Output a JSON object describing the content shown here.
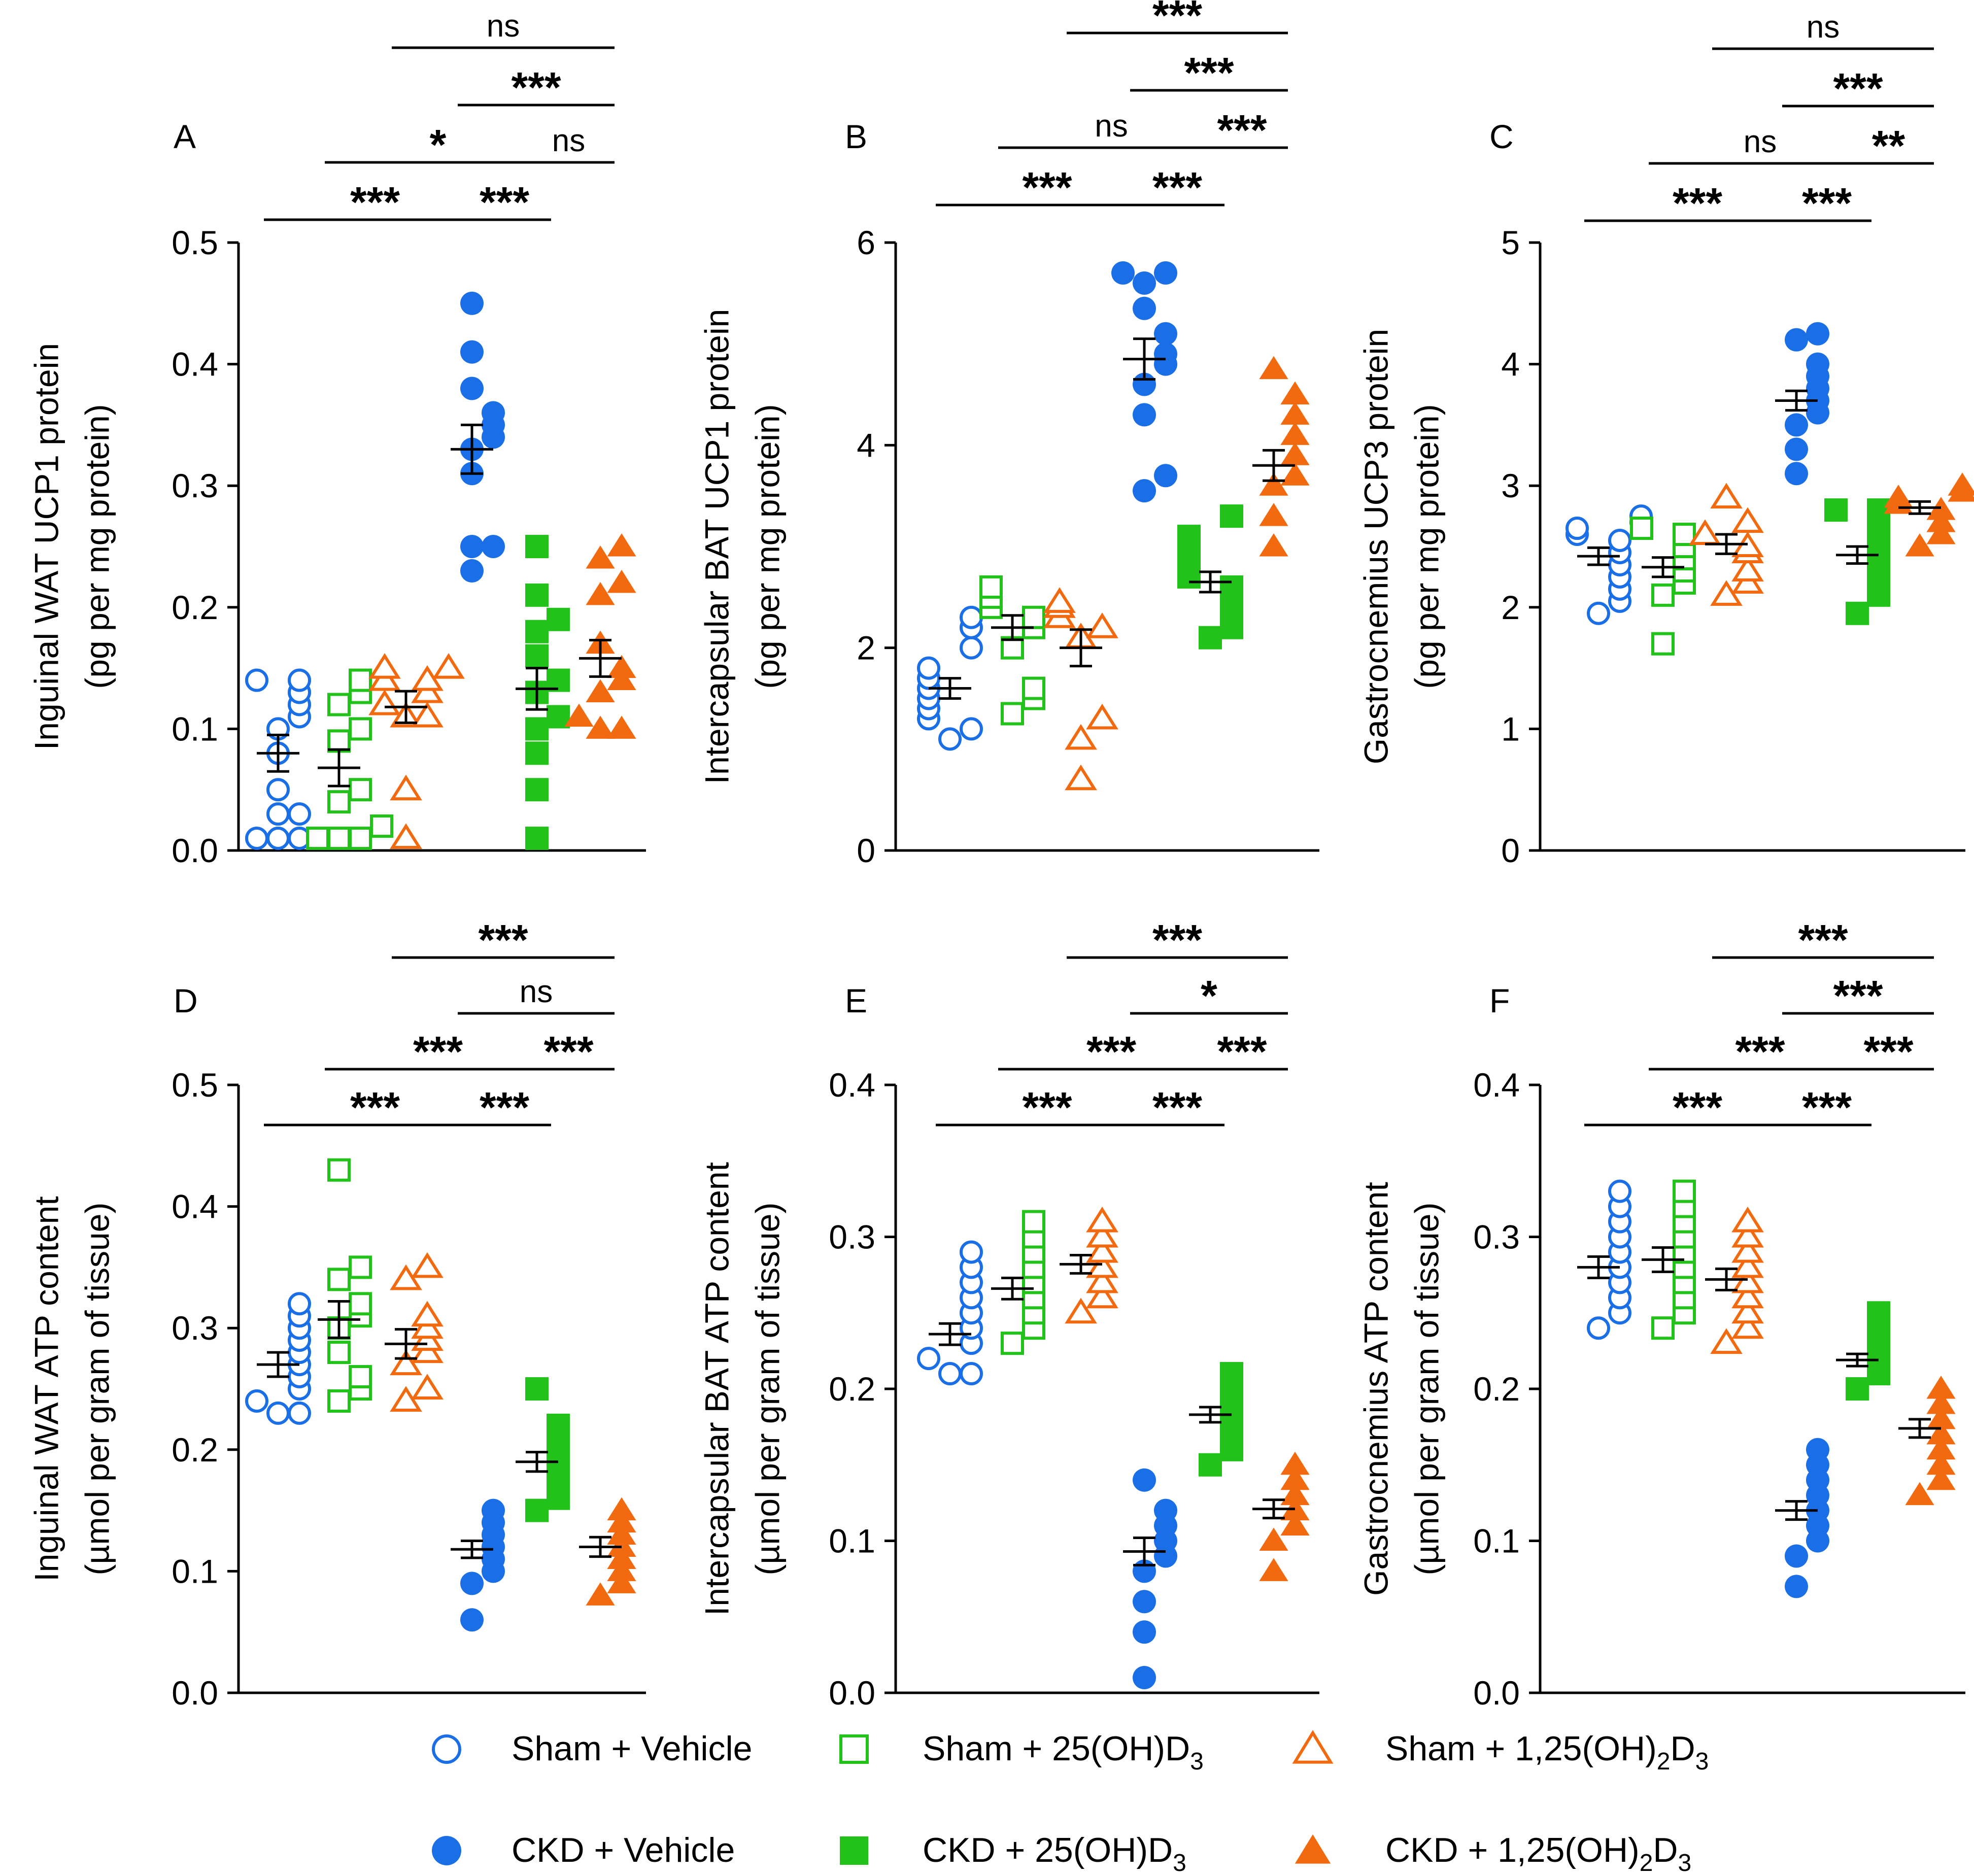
{
  "figure": {
    "colors": {
      "blue": "#1a6fe6",
      "green": "#22c21a",
      "orange": "#f26a0f",
      "axis": "#000000"
    },
    "groups": [
      {
        "key": "sham_veh",
        "label": "Sham + Vehicle",
        "color": "blue",
        "marker": "circle",
        "filled": false
      },
      {
        "key": "sham_25",
        "label": "Sham + 25(OH)D",
        "sub": "3",
        "color": "green",
        "marker": "square",
        "filled": false
      },
      {
        "key": "sham_125",
        "label": "Sham + 1,25(OH)",
        "sub": "2",
        "label2": "D",
        "sub2": "3",
        "color": "orange",
        "marker": "triangle",
        "filled": false
      },
      {
        "key": "ckd_veh",
        "label": "CKD + Vehicle",
        "color": "blue",
        "marker": "circle",
        "filled": true
      },
      {
        "key": "ckd_25",
        "label": "CKD + 25(OH)D",
        "sub": "3",
        "color": "green",
        "marker": "square",
        "filled": true
      },
      {
        "key": "ckd_125",
        "label": "CKD + 1,25(OH)",
        "sub": "2",
        "label2": "D",
        "sub2": "3",
        "color": "orange",
        "marker": "triangle",
        "filled": true
      }
    ]
  },
  "chart_data": [
    {
      "type": "scatter",
      "panel": "A",
      "ylabel": [
        "Inguinal WAT UCP1 protein",
        "(pg per mg protein)"
      ],
      "ylim": [
        0,
        0.5
      ],
      "yticks": [
        "0.0",
        "0.1",
        "0.2",
        "0.3",
        "0.4",
        "0.5"
      ],
      "series": [
        {
          "group": "sham_veh",
          "mean": 0.08,
          "sem": 0.015,
          "values": [
            0.01,
            0.01,
            0.01,
            0.03,
            0.03,
            0.05,
            0.08,
            0.1,
            0.11,
            0.12,
            0.13,
            0.14,
            0.14
          ]
        },
        {
          "group": "sham_25",
          "mean": 0.068,
          "sem": 0.015,
          "values": [
            0.01,
            0.01,
            0.01,
            0.02,
            0.04,
            0.05,
            0.09,
            0.1,
            0.12,
            0.13,
            0.14
          ]
        },
        {
          "group": "sham_125",
          "mean": 0.118,
          "sem": 0.013,
          "values": [
            0.01,
            0.05,
            0.11,
            0.11,
            0.12,
            0.13,
            0.14,
            0.14,
            0.15,
            0.15
          ]
        },
        {
          "group": "ckd_veh",
          "mean": 0.33,
          "sem": 0.02,
          "values": [
            0.23,
            0.25,
            0.25,
            0.31,
            0.33,
            0.34,
            0.35,
            0.36,
            0.38,
            0.41,
            0.45
          ]
        },
        {
          "group": "ckd_25",
          "mean": 0.133,
          "sem": 0.017,
          "values": [
            0.01,
            0.05,
            0.08,
            0.1,
            0.11,
            0.13,
            0.14,
            0.16,
            0.18,
            0.19,
            0.21,
            0.25
          ]
        },
        {
          "group": "ckd_125",
          "mean": 0.158,
          "sem": 0.015,
          "values": [
            0.1,
            0.1,
            0.11,
            0.13,
            0.14,
            0.15,
            0.17,
            0.21,
            0.22,
            0.24,
            0.25
          ]
        }
      ],
      "comparisons": [
        {
          "from": 0,
          "to": 3,
          "level": 0,
          "label": "***"
        },
        {
          "from": 3,
          "to": 4,
          "level": 0,
          "label": "***"
        },
        {
          "from": 1,
          "to": 4,
          "level": 1,
          "label": "*"
        },
        {
          "from": 4,
          "to": 5,
          "level": 1,
          "label": "ns"
        },
        {
          "from": 3,
          "to": 5,
          "level": 2,
          "label": "***"
        },
        {
          "from": 2,
          "to": 5,
          "level": 3,
          "label": "ns"
        }
      ]
    },
    {
      "type": "scatter",
      "panel": "B",
      "ylabel": [
        "Intercapsular BAT UCP1 protein",
        "(pg per mg protein)"
      ],
      "ylim": [
        0,
        6
      ],
      "yticks": [
        "0",
        "2",
        "4",
        "6"
      ],
      "series": [
        {
          "group": "sham_veh",
          "mean": 1.6,
          "sem": 0.1,
          "values": [
            1.1,
            1.2,
            1.3,
            1.4,
            1.5,
            1.6,
            1.7,
            1.8,
            2.0,
            2.2,
            2.3
          ]
        },
        {
          "group": "sham_25",
          "mean": 2.2,
          "sem": 0.12,
          "values": [
            1.35,
            1.5,
            1.6,
            2.0,
            2.2,
            2.3,
            2.4,
            2.5,
            2.6
          ]
        },
        {
          "group": "sham_125",
          "mean": 2.0,
          "sem": 0.18,
          "values": [
            0.7,
            1.1,
            1.3,
            2.1,
            2.2,
            2.3,
            2.4,
            2.45
          ]
        },
        {
          "group": "ckd_veh",
          "mean": 4.85,
          "sem": 0.2,
          "values": [
            3.55,
            3.7,
            4.3,
            4.6,
            4.8,
            4.9,
            5.1,
            5.35,
            5.6,
            5.7,
            5.7
          ]
        },
        {
          "group": "ckd_25",
          "mean": 2.65,
          "sem": 0.1,
          "values": [
            2.1,
            2.2,
            2.35,
            2.5,
            2.6,
            2.7,
            2.8,
            2.9,
            3.0,
            3.1,
            3.3
          ]
        },
        {
          "group": "ckd_125",
          "mean": 3.8,
          "sem": 0.15,
          "values": [
            3.0,
            3.3,
            3.6,
            3.7,
            3.9,
            4.1,
            4.3,
            4.5,
            4.75
          ]
        }
      ],
      "comparisons": [
        {
          "from": 0,
          "to": 3,
          "level": 0,
          "label": "***"
        },
        {
          "from": 3,
          "to": 4,
          "level": 0,
          "label": "***"
        },
        {
          "from": 1,
          "to": 4,
          "level": 1,
          "label": "ns"
        },
        {
          "from": 4,
          "to": 5,
          "level": 1,
          "label": "***"
        },
        {
          "from": 3,
          "to": 5,
          "level": 2,
          "label": "***"
        },
        {
          "from": 2,
          "to": 5,
          "level": 3,
          "label": "***"
        }
      ]
    },
    {
      "type": "scatter",
      "panel": "C",
      "ylabel": [
        "Gastrocnemius UCP3 protein",
        "(pg per mg protein)"
      ],
      "ylim": [
        0,
        5
      ],
      "yticks": [
        "0",
        "1",
        "2",
        "3",
        "4",
        "5"
      ],
      "series": [
        {
          "group": "sham_veh",
          "mean": 2.42,
          "sem": 0.07,
          "values": [
            1.95,
            2.05,
            2.15,
            2.25,
            2.35,
            2.45,
            2.55,
            2.6,
            2.65,
            2.7,
            2.75
          ]
        },
        {
          "group": "sham_25",
          "mean": 2.33,
          "sem": 0.08,
          "values": [
            1.7,
            2.1,
            2.2,
            2.3,
            2.4,
            2.5,
            2.6,
            2.65
          ]
        },
        {
          "group": "sham_125",
          "mean": 2.52,
          "sem": 0.08,
          "values": [
            2.1,
            2.2,
            2.3,
            2.45,
            2.5,
            2.6,
            2.7,
            2.9
          ]
        },
        {
          "group": "ckd_veh",
          "mean": 3.7,
          "sem": 0.08,
          "values": [
            3.1,
            3.3,
            3.5,
            3.6,
            3.7,
            3.8,
            3.9,
            4.0,
            4.2,
            4.25
          ]
        },
        {
          "group": "ckd_25",
          "mean": 2.43,
          "sem": 0.07,
          "values": [
            1.95,
            2.1,
            2.2,
            2.3,
            2.4,
            2.5,
            2.6,
            2.7,
            2.8,
            2.8
          ]
        },
        {
          "group": "ckd_125",
          "mean": 2.82,
          "sem": 0.05,
          "values": [
            2.5,
            2.6,
            2.7,
            2.8,
            2.85,
            2.9,
            2.95,
            3.0
          ]
        }
      ],
      "comparisons": [
        {
          "from": 0,
          "to": 3,
          "level": 0,
          "label": "***"
        },
        {
          "from": 3,
          "to": 4,
          "level": 0,
          "label": "***"
        },
        {
          "from": 1,
          "to": 4,
          "level": 1,
          "label": "ns"
        },
        {
          "from": 4,
          "to": 5,
          "level": 1,
          "label": "**"
        },
        {
          "from": 3,
          "to": 5,
          "level": 2,
          "label": "***"
        },
        {
          "from": 2,
          "to": 5,
          "level": 3,
          "label": "ns"
        }
      ]
    },
    {
      "type": "scatter",
      "panel": "D",
      "ylabel": [
        "Inguinal WAT ATP content",
        "(µmol per gram of tissue)"
      ],
      "ylim": [
        0,
        0.5
      ],
      "yticks": [
        "0.0",
        "0.1",
        "0.2",
        "0.3",
        "0.4",
        "0.5"
      ],
      "series": [
        {
          "group": "sham_veh",
          "mean": 0.27,
          "sem": 0.01,
          "values": [
            0.23,
            0.23,
            0.24,
            0.25,
            0.26,
            0.27,
            0.28,
            0.29,
            0.3,
            0.31,
            0.32
          ]
        },
        {
          "group": "sham_25",
          "mean": 0.307,
          "sem": 0.015,
          "values": [
            0.24,
            0.25,
            0.26,
            0.28,
            0.3,
            0.31,
            0.32,
            0.34,
            0.35,
            0.43
          ]
        },
        {
          "group": "sham_125",
          "mean": 0.287,
          "sem": 0.012,
          "values": [
            0.24,
            0.25,
            0.27,
            0.28,
            0.29,
            0.3,
            0.31,
            0.34,
            0.35
          ]
        },
        {
          "group": "ckd_veh",
          "mean": 0.118,
          "sem": 0.007,
          "values": [
            0.06,
            0.09,
            0.1,
            0.11,
            0.12,
            0.13,
            0.14,
            0.15
          ]
        },
        {
          "group": "ckd_25",
          "mean": 0.19,
          "sem": 0.008,
          "values": [
            0.15,
            0.16,
            0.17,
            0.18,
            0.19,
            0.2,
            0.21,
            0.22,
            0.25
          ]
        },
        {
          "group": "ckd_125",
          "mean": 0.12,
          "sem": 0.008,
          "values": [
            0.08,
            0.09,
            0.1,
            0.11,
            0.12,
            0.13,
            0.14,
            0.15
          ]
        }
      ],
      "comparisons": [
        {
          "from": 0,
          "to": 3,
          "level": 0,
          "label": "***"
        },
        {
          "from": 3,
          "to": 4,
          "level": 0,
          "label": "***"
        },
        {
          "from": 1,
          "to": 4,
          "level": 1,
          "label": "***"
        },
        {
          "from": 4,
          "to": 5,
          "level": 1,
          "label": "***"
        },
        {
          "from": 3,
          "to": 5,
          "level": 2,
          "label": "ns"
        },
        {
          "from": 2,
          "to": 5,
          "level": 3,
          "label": "***"
        }
      ]
    },
    {
      "type": "scatter",
      "panel": "E",
      "ylabel": [
        "Intercapsular BAT ATP content",
        "(µmol per gram of tissue)"
      ],
      "ylim": [
        0,
        0.4
      ],
      "yticks": [
        "0.0",
        "0.1",
        "0.2",
        "0.3",
        "0.4"
      ],
      "series": [
        {
          "group": "sham_veh",
          "mean": 0.236,
          "sem": 0.007,
          "values": [
            0.21,
            0.21,
            0.22,
            0.23,
            0.24,
            0.25,
            0.26,
            0.27,
            0.28,
            0.29
          ]
        },
        {
          "group": "sham_25",
          "mean": 0.266,
          "sem": 0.007,
          "values": [
            0.23,
            0.24,
            0.25,
            0.26,
            0.27,
            0.28,
            0.29,
            0.3,
            0.31
          ]
        },
        {
          "group": "sham_125",
          "mean": 0.282,
          "sem": 0.006,
          "values": [
            0.25,
            0.26,
            0.27,
            0.28,
            0.29,
            0.3,
            0.31
          ]
        },
        {
          "group": "ckd_veh",
          "mean": 0.093,
          "sem": 0.009,
          "values": [
            0.01,
            0.04,
            0.06,
            0.08,
            0.09,
            0.1,
            0.11,
            0.12,
            0.14
          ]
        },
        {
          "group": "ckd_25",
          "mean": 0.183,
          "sem": 0.005,
          "values": [
            0.15,
            0.16,
            0.17,
            0.18,
            0.19,
            0.2,
            0.21
          ]
        },
        {
          "group": "ckd_125",
          "mean": 0.121,
          "sem": 0.006,
          "values": [
            0.08,
            0.1,
            0.11,
            0.12,
            0.13,
            0.14,
            0.15
          ]
        }
      ],
      "comparisons": [
        {
          "from": 0,
          "to": 3,
          "level": 0,
          "label": "***"
        },
        {
          "from": 3,
          "to": 4,
          "level": 0,
          "label": "***"
        },
        {
          "from": 1,
          "to": 4,
          "level": 1,
          "label": "***"
        },
        {
          "from": 4,
          "to": 5,
          "level": 1,
          "label": "***"
        },
        {
          "from": 3,
          "to": 5,
          "level": 2,
          "label": "*"
        },
        {
          "from": 2,
          "to": 5,
          "level": 3,
          "label": "***"
        }
      ]
    },
    {
      "type": "scatter",
      "panel": "F",
      "ylabel": [
        "Gastrocnemius ATP content",
        "(µmol per gram of tissue)"
      ],
      "ylim": [
        0,
        0.4
      ],
      "yticks": [
        "0.0",
        "0.1",
        "0.2",
        "0.3",
        "0.4"
      ],
      "series": [
        {
          "group": "sham_veh",
          "mean": 0.28,
          "sem": 0.007,
          "values": [
            0.24,
            0.25,
            0.26,
            0.27,
            0.28,
            0.29,
            0.3,
            0.31,
            0.32,
            0.33
          ]
        },
        {
          "group": "sham_25",
          "mean": 0.285,
          "sem": 0.008,
          "values": [
            0.24,
            0.25,
            0.26,
            0.27,
            0.28,
            0.29,
            0.3,
            0.31,
            0.32,
            0.33
          ]
        },
        {
          "group": "sham_125",
          "mean": 0.272,
          "sem": 0.007,
          "values": [
            0.23,
            0.24,
            0.25,
            0.26,
            0.27,
            0.28,
            0.29,
            0.3,
            0.31
          ]
        },
        {
          "group": "ckd_veh",
          "mean": 0.12,
          "sem": 0.006,
          "values": [
            0.07,
            0.09,
            0.1,
            0.11,
            0.12,
            0.13,
            0.14,
            0.15,
            0.16
          ]
        },
        {
          "group": "ckd_25",
          "mean": 0.219,
          "sem": 0.004,
          "values": [
            0.2,
            0.21,
            0.22,
            0.23,
            0.24,
            0.25
          ]
        },
        {
          "group": "ckd_125",
          "mean": 0.174,
          "sem": 0.006,
          "values": [
            0.13,
            0.14,
            0.15,
            0.16,
            0.17,
            0.18,
            0.19,
            0.2
          ]
        }
      ],
      "comparisons": [
        {
          "from": 0,
          "to": 3,
          "level": 0,
          "label": "***"
        },
        {
          "from": 3,
          "to": 4,
          "level": 0,
          "label": "***"
        },
        {
          "from": 1,
          "to": 4,
          "level": 1,
          "label": "***"
        },
        {
          "from": 4,
          "to": 5,
          "level": 1,
          "label": "***"
        },
        {
          "from": 3,
          "to": 5,
          "level": 2,
          "label": "***"
        },
        {
          "from": 2,
          "to": 5,
          "level": 3,
          "label": "***"
        }
      ]
    }
  ]
}
